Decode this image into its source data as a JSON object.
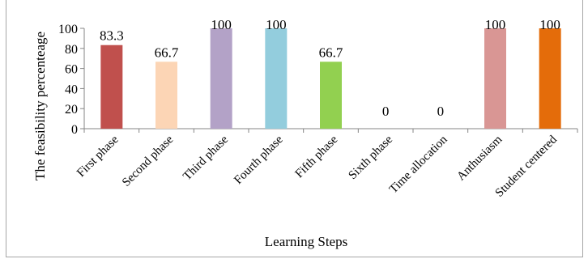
{
  "chart_data": {
    "type": "bar",
    "ylabel": "The feasibility percenteage",
    "xlabel": "Learning Steps",
    "ylim": [
      0,
      100
    ],
    "yticks": [
      0,
      20,
      40,
      60,
      80,
      100
    ],
    "grid": false,
    "legend": "none",
    "categories": [
      "First phase",
      "Second phase",
      "Third phase",
      "Fourth phase",
      "Fifth phase",
      "Sixth phase",
      "Time allocation",
      "Anthusiasm",
      "Student centered"
    ],
    "values": [
      83.3,
      66.7,
      100,
      100,
      66.7,
      0,
      0,
      100,
      100
    ],
    "data_labels": [
      "83.3",
      "66.7",
      "100",
      "100",
      "66.7",
      "0",
      "0",
      "100",
      "100"
    ],
    "colors": [
      "#c0504d",
      "#fcd5b5",
      "#b3a2c7",
      "#93cddd",
      "#92d050",
      "#ffffff",
      "#ffffff",
      "#d99694",
      "#e46c0a"
    ]
  }
}
